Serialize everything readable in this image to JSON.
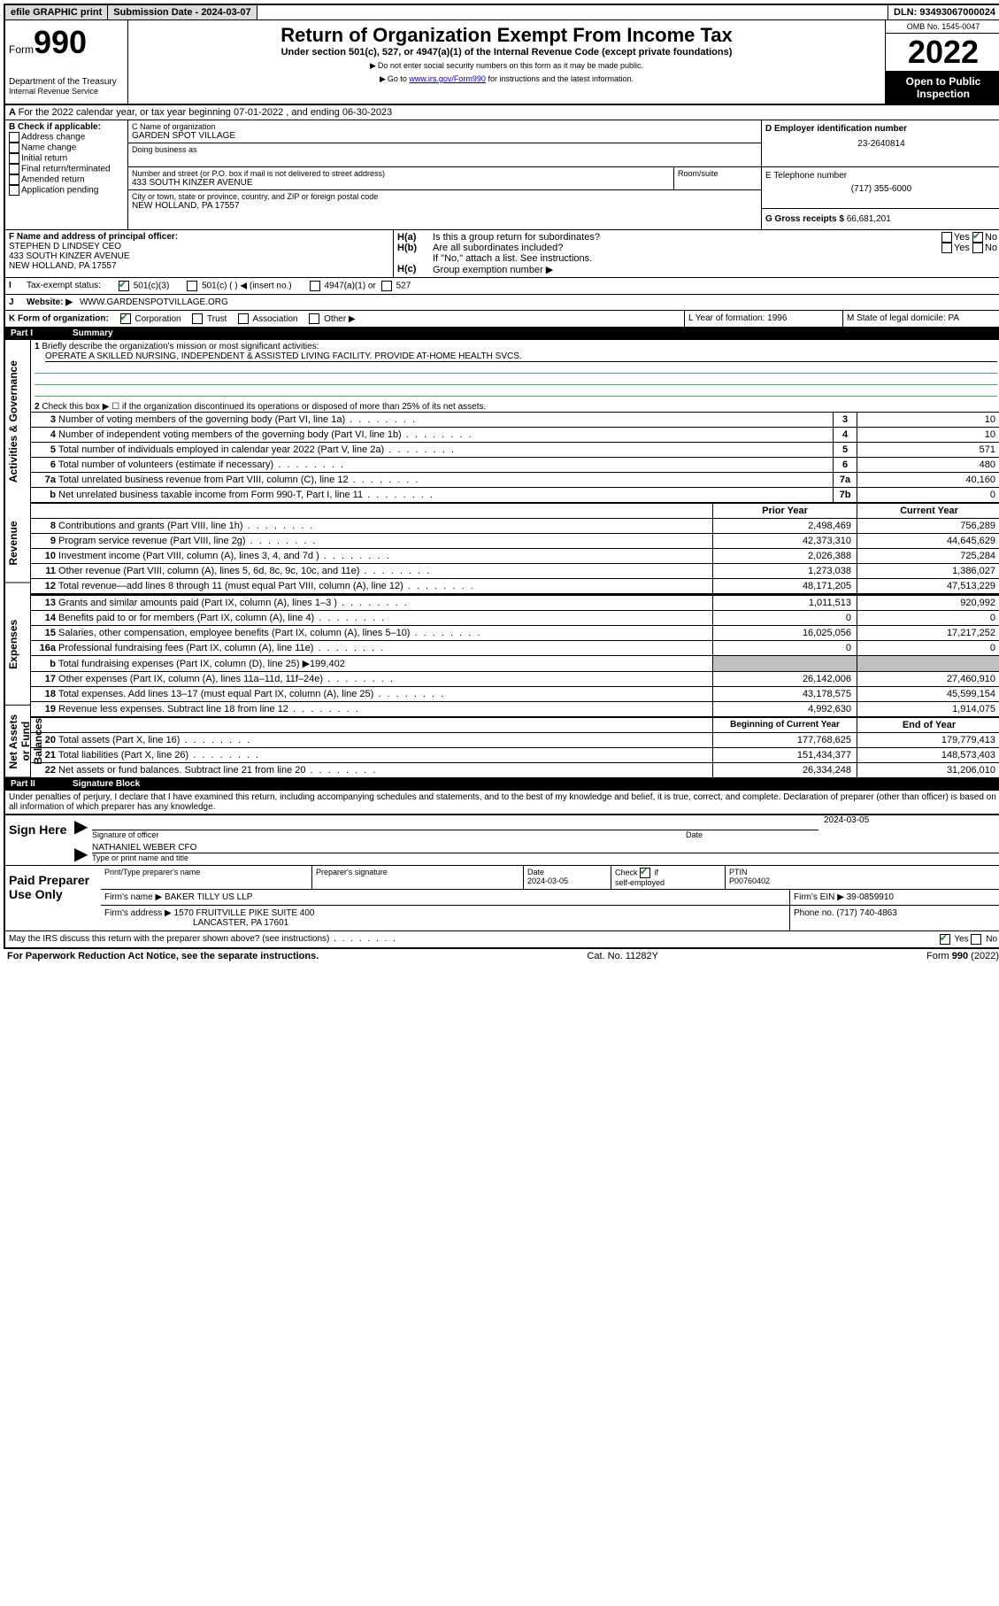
{
  "topbar": {
    "efile": "efile GRAPHIC print",
    "sub_label": "Submission Date - 2024-03-07",
    "dln": "DLN: 93493067000024"
  },
  "header": {
    "form": "Form",
    "num": "990",
    "dept": "Department of the Treasury",
    "irs": "Internal Revenue Service",
    "title": "Return of Organization Exempt From Income Tax",
    "sub1": "Under section 501(c), 527, or 4947(a)(1) of the Internal Revenue Code (except private foundations)",
    "sub2": "Do not enter social security numbers on this form as it may be made public.",
    "sub3_pre": "Go to ",
    "sub3_link": "www.irs.gov/Form990",
    "sub3_post": " for instructions and the latest information.",
    "omb": "OMB No. 1545-0047",
    "year": "2022",
    "open": "Open to Public Inspection"
  },
  "A": {
    "text": "For the 2022 calendar year, or tax year beginning 07-01-2022   , and ending 06-30-2023"
  },
  "B": {
    "title": "B Check if applicable:",
    "opts": [
      "Address change",
      "Name change",
      "Initial return",
      "Final return/terminated",
      "Amended return",
      "Application pending"
    ]
  },
  "C": {
    "name_lbl": "C Name of organization",
    "name": "GARDEN SPOT VILLAGE",
    "dba_lbl": "Doing business as",
    "street_lbl": "Number and street (or P.O. box if mail is not delivered to street address)",
    "room_lbl": "Room/suite",
    "street": "433 SOUTH KINZER AVENUE",
    "city_lbl": "City or town, state or province, country, and ZIP or foreign postal code",
    "city": "NEW HOLLAND, PA  17557"
  },
  "D": {
    "lbl": "D Employer identification number",
    "val": "23-2640814"
  },
  "E": {
    "lbl": "E Telephone number",
    "val": "(717) 355-6000"
  },
  "G": {
    "lbl": "G Gross receipts $",
    "val": "66,681,201"
  },
  "F": {
    "lbl": "F  Name and address of principal officer:",
    "l1": "STEPHEN D LINDSEY CEO",
    "l2": "433 SOUTH KINZER AVENUE",
    "l3": "NEW HOLLAND, PA  17557"
  },
  "H": {
    "a": "Is this a group return for subordinates?",
    "b": "Are all subordinates included?",
    "bnote": "If \"No,\" attach a list. See instructions.",
    "c": "Group exemption number ▶",
    "ha_ans": "No"
  },
  "I": {
    "lbl": "Tax-exempt status:",
    "o1": "501(c)(3)",
    "o2": "501(c) (  ) ◀ (insert no.)",
    "o3": "4947(a)(1) or",
    "o4": "527"
  },
  "J": {
    "lbl": "Website: ▶",
    "val": "WWW.GARDENSPOTVILLAGE.ORG"
  },
  "K": {
    "lbl": "K Form of organization:",
    "o1": "Corporation",
    "o2": "Trust",
    "o3": "Association",
    "o4": "Other ▶"
  },
  "L": {
    "lbl": "L Year of formation: 1996"
  },
  "M": {
    "lbl": "M State of legal domicile: PA"
  },
  "partI": {
    "label": "Part I",
    "title": "Summary"
  },
  "summary": {
    "q1": "Briefly describe the organization's mission or most significant activities:",
    "mission": "OPERATE A SKILLED NURSING, INDEPENDENT & ASSISTED LIVING FACILITY. PROVIDE AT-HOME HEALTH SVCS.",
    "q2": "Check this box ▶ ☐  if the organization discontinued its operations or disposed of more than 25% of its net assets.",
    "rows_gov": [
      {
        "n": "3",
        "t": "Number of voting members of the governing body (Part VI, line 1a)",
        "v": "10"
      },
      {
        "n": "4",
        "t": "Number of independent voting members of the governing body (Part VI, line 1b)",
        "v": "10"
      },
      {
        "n": "5",
        "t": "Total number of individuals employed in calendar year 2022 (Part V, line 2a)",
        "v": "571"
      },
      {
        "n": "6",
        "t": "Total number of volunteers (estimate if necessary)",
        "v": "480"
      },
      {
        "n": "7a",
        "t": "Total unrelated business revenue from Part VIII, column (C), line 12",
        "v": "40,160"
      },
      {
        "n": "b",
        "t": "Net unrelated business taxable income from Form 990-T, Part I, line 11",
        "nn": "7b",
        "v": "0"
      }
    ],
    "col_prior": "Prior Year",
    "col_curr": "Current Year",
    "rev": [
      {
        "n": "8",
        "t": "Contributions and grants (Part VIII, line 1h)",
        "p": "2,498,469",
        "c": "756,289"
      },
      {
        "n": "9",
        "t": "Program service revenue (Part VIII, line 2g)",
        "p": "42,373,310",
        "c": "44,645,629"
      },
      {
        "n": "10",
        "t": "Investment income (Part VIII, column (A), lines 3, 4, and 7d )",
        "p": "2,026,388",
        "c": "725,284"
      },
      {
        "n": "11",
        "t": "Other revenue (Part VIII, column (A), lines 5, 6d, 8c, 9c, 10c, and 11e)",
        "p": "1,273,038",
        "c": "1,386,027"
      },
      {
        "n": "12",
        "t": "Total revenue—add lines 8 through 11 (must equal Part VIII, column (A), line 12)",
        "p": "48,171,205",
        "c": "47,513,229"
      }
    ],
    "exp": [
      {
        "n": "13",
        "t": "Grants and similar amounts paid (Part IX, column (A), lines 1–3 )",
        "p": "1,011,513",
        "c": "920,992"
      },
      {
        "n": "14",
        "t": "Benefits paid to or for members (Part IX, column (A), line 4)",
        "p": "0",
        "c": "0"
      },
      {
        "n": "15",
        "t": "Salaries, other compensation, employee benefits (Part IX, column (A), lines 5–10)",
        "p": "16,025,056",
        "c": "17,217,252"
      },
      {
        "n": "16a",
        "t": "Professional fundraising fees (Part IX, column (A), line 11e)",
        "p": "0",
        "c": "0"
      },
      {
        "n": "b",
        "t": "Total fundraising expenses (Part IX, column (D), line 25) ▶199,402",
        "grey": true
      },
      {
        "n": "17",
        "t": "Other expenses (Part IX, column (A), lines 11a–11d, 11f–24e)",
        "p": "26,142,006",
        "c": "27,460,910"
      },
      {
        "n": "18",
        "t": "Total expenses. Add lines 13–17 (must equal Part IX, column (A), line 25)",
        "p": "43,178,575",
        "c": "45,599,154"
      },
      {
        "n": "19",
        "t": "Revenue less expenses. Subtract line 18 from line 12",
        "p": "4,992,630",
        "c": "1,914,075"
      }
    ],
    "col_beg": "Beginning of Current Year",
    "col_end": "End of Year",
    "net": [
      {
        "n": "20",
        "t": "Total assets (Part X, line 16)",
        "p": "177,768,625",
        "c": "179,779,413"
      },
      {
        "n": "21",
        "t": "Total liabilities (Part X, line 26)",
        "p": "151,434,377",
        "c": "148,573,403"
      },
      {
        "n": "22",
        "t": "Net assets or fund balances. Subtract line 21 from line 20",
        "p": "26,334,248",
        "c": "31,206,010"
      }
    ],
    "side_gov": "Activities & Governance",
    "side_rev": "Revenue",
    "side_exp": "Expenses",
    "side_net": "Net Assets or Fund Balances"
  },
  "partII": {
    "label": "Part II",
    "title": "Signature Block"
  },
  "sig": {
    "decl": "Under penalties of perjury, I declare that I have examined this return, including accompanying schedules and statements, and to the best of my knowledge and belief, it is true, correct, and complete. Declaration of preparer (other than officer) is based on all information of which preparer has any knowledge.",
    "sign": "Sign Here",
    "officer_lbl": "Signature of officer",
    "date": "2024-03-05",
    "date_lbl": "Date",
    "name": "NATHANIEL WEBER  CFO",
    "name_lbl": "Type or print name and title",
    "paid": "Paid Preparer Use Only",
    "pname_lbl": "Print/Type preparer's name",
    "psig_lbl": "Preparer's signature",
    "pdate_lbl": "Date",
    "pdate": "2024-03-05",
    "pchk_lbl": "Check ☑ if self-employed",
    "ptin_lbl": "PTIN",
    "ptin": "P00760402",
    "firm_lbl": "Firm's name   ▶",
    "firm": "BAKER TILLY US LLP",
    "fein_lbl": "Firm's EIN ▶",
    "fein": "39-0859910",
    "faddr_lbl": "Firm's address ▶",
    "faddr1": "1570 FRUITVILLE PIKE SUITE 400",
    "faddr2": "LANCASTER, PA  17601",
    "fphone_lbl": "Phone no.",
    "fphone": "(717) 740-4863",
    "discuss": "May the IRS discuss this return with the preparer shown above? (see instructions)",
    "discuss_ans": "Yes"
  },
  "footer": {
    "l": "For Paperwork Reduction Act Notice, see the separate instructions.",
    "m": "Cat. No. 11282Y",
    "r": "Form 990 (2022)"
  }
}
